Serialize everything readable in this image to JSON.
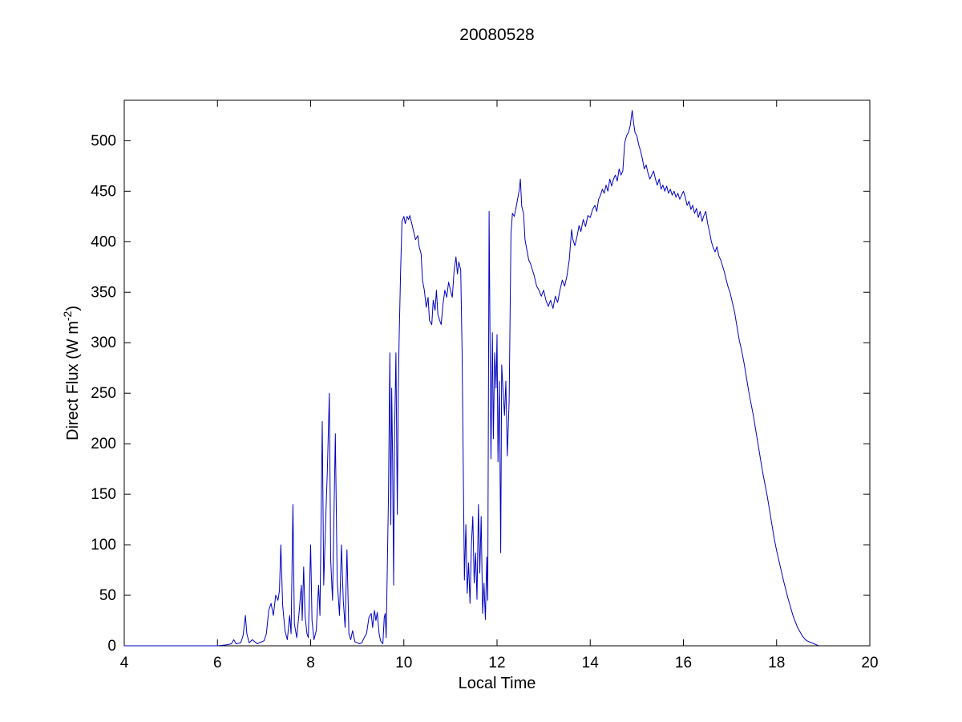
{
  "chart_data": {
    "type": "line",
    "title": "20080528",
    "xlabel": "Local Time",
    "ylabel": "Direct Flux (W m^-2)",
    "ylabel_parts": {
      "main": "Direct Flux (W m",
      "sup": "-2",
      "end": ")"
    },
    "xlim": [
      4,
      20
    ],
    "ylim": [
      0,
      540
    ],
    "xticks": [
      4,
      6,
      8,
      10,
      12,
      14,
      16,
      18,
      20
    ],
    "yticks": [
      0,
      50,
      100,
      150,
      200,
      250,
      300,
      350,
      400,
      450,
      500
    ],
    "grid": false,
    "legend": null,
    "line_color": "#0000bf",
    "axis_color": "#000000",
    "background": "#ffffff",
    "points": [
      [
        4.0,
        0
      ],
      [
        4.5,
        0
      ],
      [
        5.0,
        0
      ],
      [
        5.5,
        0
      ],
      [
        6.0,
        0
      ],
      [
        6.2,
        1
      ],
      [
        6.3,
        2
      ],
      [
        6.35,
        6
      ],
      [
        6.4,
        2
      ],
      [
        6.5,
        3
      ],
      [
        6.55,
        10
      ],
      [
        6.6,
        30
      ],
      [
        6.63,
        12
      ],
      [
        6.68,
        3
      ],
      [
        6.75,
        6
      ],
      [
        6.85,
        2
      ],
      [
        6.95,
        4
      ],
      [
        7.0,
        5
      ],
      [
        7.05,
        12
      ],
      [
        7.1,
        35
      ],
      [
        7.15,
        42
      ],
      [
        7.2,
        30
      ],
      [
        7.25,
        50
      ],
      [
        7.3,
        45
      ],
      [
        7.33,
        55
      ],
      [
        7.36,
        100
      ],
      [
        7.4,
        40
      ],
      [
        7.45,
        15
      ],
      [
        7.5,
        6
      ],
      [
        7.55,
        30
      ],
      [
        7.58,
        12
      ],
      [
        7.62,
        140
      ],
      [
        7.65,
        22
      ],
      [
        7.7,
        8
      ],
      [
        7.75,
        32
      ],
      [
        7.8,
        60
      ],
      [
        7.82,
        25
      ],
      [
        7.85,
        78
      ],
      [
        7.88,
        30
      ],
      [
        7.92,
        12
      ],
      [
        7.95,
        8
      ],
      [
        8.0,
        100
      ],
      [
        8.03,
        25
      ],
      [
        8.07,
        6
      ],
      [
        8.12,
        15
      ],
      [
        8.17,
        60
      ],
      [
        8.2,
        30
      ],
      [
        8.25,
        222
      ],
      [
        8.28,
        60
      ],
      [
        8.32,
        120
      ],
      [
        8.36,
        175
      ],
      [
        8.4,
        250
      ],
      [
        8.43,
        85
      ],
      [
        8.47,
        45
      ],
      [
        8.5,
        130
      ],
      [
        8.53,
        210
      ],
      [
        8.57,
        65
      ],
      [
        8.62,
        30
      ],
      [
        8.66,
        100
      ],
      [
        8.7,
        45
      ],
      [
        8.74,
        18
      ],
      [
        8.78,
        95
      ],
      [
        8.82,
        12
      ],
      [
        8.86,
        6
      ],
      [
        8.9,
        15
      ],
      [
        8.95,
        4
      ],
      [
        9.0,
        3
      ],
      [
        9.05,
        2
      ],
      [
        9.1,
        3
      ],
      [
        9.15,
        8
      ],
      [
        9.2,
        12
      ],
      [
        9.25,
        28
      ],
      [
        9.3,
        32
      ],
      [
        9.33,
        18
      ],
      [
        9.37,
        35
      ],
      [
        9.4,
        25
      ],
      [
        9.43,
        33
      ],
      [
        9.47,
        12
      ],
      [
        9.5,
        5
      ],
      [
        9.55,
        2
      ],
      [
        9.58,
        28
      ],
      [
        9.6,
        32
      ],
      [
        9.62,
        8
      ],
      [
        9.65,
        90
      ],
      [
        9.67,
        150
      ],
      [
        9.7,
        290
      ],
      [
        9.72,
        120
      ],
      [
        9.74,
        255
      ],
      [
        9.76,
        180
      ],
      [
        9.78,
        60
      ],
      [
        9.8,
        205
      ],
      [
        9.83,
        290
      ],
      [
        9.86,
        130
      ],
      [
        9.88,
        250
      ],
      [
        9.9,
        305
      ],
      [
        9.93,
        370
      ],
      [
        9.96,
        420
      ],
      [
        10.0,
        425
      ],
      [
        10.03,
        418
      ],
      [
        10.07,
        425
      ],
      [
        10.1,
        422
      ],
      [
        10.13,
        426
      ],
      [
        10.17,
        418
      ],
      [
        10.2,
        412
      ],
      [
        10.25,
        402
      ],
      [
        10.3,
        406
      ],
      [
        10.33,
        395
      ],
      [
        10.37,
        388
      ],
      [
        10.4,
        362
      ],
      [
        10.44,
        352
      ],
      [
        10.48,
        335
      ],
      [
        10.52,
        345
      ],
      [
        10.55,
        322
      ],
      [
        10.6,
        318
      ],
      [
        10.63,
        342
      ],
      [
        10.67,
        332
      ],
      [
        10.7,
        352
      ],
      [
        10.73,
        328
      ],
      [
        10.77,
        322
      ],
      [
        10.8,
        318
      ],
      [
        10.84,
        338
      ],
      [
        10.88,
        352
      ],
      [
        10.92,
        345
      ],
      [
        10.96,
        360
      ],
      [
        11.0,
        352
      ],
      [
        11.04,
        345
      ],
      [
        11.08,
        372
      ],
      [
        11.12,
        385
      ],
      [
        11.15,
        368
      ],
      [
        11.18,
        380
      ],
      [
        11.22,
        372
      ],
      [
        11.25,
        292
      ],
      [
        11.28,
        160
      ],
      [
        11.3,
        65
      ],
      [
        11.33,
        120
      ],
      [
        11.36,
        52
      ],
      [
        11.39,
        82
      ],
      [
        11.42,
        42
      ],
      [
        11.45,
        100
      ],
      [
        11.48,
        128
      ],
      [
        11.51,
        62
      ],
      [
        11.54,
        92
      ],
      [
        11.57,
        46
      ],
      [
        11.6,
        140
      ],
      [
        11.63,
        72
      ],
      [
        11.66,
        128
      ],
      [
        11.69,
        32
      ],
      [
        11.72,
        62
      ],
      [
        11.75,
        26
      ],
      [
        11.78,
        88
      ],
      [
        11.8,
        45
      ],
      [
        11.83,
        430
      ],
      [
        11.85,
        300
      ],
      [
        11.87,
        185
      ],
      [
        11.9,
        310
      ],
      [
        11.92,
        205
      ],
      [
        11.95,
        290
      ],
      [
        11.98,
        255
      ],
      [
        12.0,
        308
      ],
      [
        12.02,
        182
      ],
      [
        12.05,
        262
      ],
      [
        12.08,
        92
      ],
      [
        12.1,
        278
      ],
      [
        12.13,
        252
      ],
      [
        12.16,
        228
      ],
      [
        12.19,
        262
      ],
      [
        12.22,
        188
      ],
      [
        12.26,
        242
      ],
      [
        12.3,
        408
      ],
      [
        12.33,
        428
      ],
      [
        12.37,
        425
      ],
      [
        12.4,
        432
      ],
      [
        12.44,
        442
      ],
      [
        12.48,
        452
      ],
      [
        12.5,
        462
      ],
      [
        12.53,
        435
      ],
      [
        12.57,
        428
      ],
      [
        12.6,
        402
      ],
      [
        12.64,
        392
      ],
      [
        12.68,
        382
      ],
      [
        12.72,
        378
      ],
      [
        12.76,
        372
      ],
      [
        12.8,
        366
      ],
      [
        12.85,
        356
      ],
      [
        12.9,
        352
      ],
      [
        12.95,
        346
      ],
      [
        13.0,
        352
      ],
      [
        13.05,
        342
      ],
      [
        13.1,
        336
      ],
      [
        13.15,
        342
      ],
      [
        13.2,
        334
      ],
      [
        13.25,
        346
      ],
      [
        13.3,
        340
      ],
      [
        13.35,
        352
      ],
      [
        13.4,
        362
      ],
      [
        13.45,
        356
      ],
      [
        13.5,
        366
      ],
      [
        13.55,
        382
      ],
      [
        13.6,
        412
      ],
      [
        13.63,
        402
      ],
      [
        13.67,
        396
      ],
      [
        13.72,
        406
      ],
      [
        13.76,
        416
      ],
      [
        13.8,
        410
      ],
      [
        13.85,
        422
      ],
      [
        13.9,
        415
      ],
      [
        13.95,
        426
      ],
      [
        14.0,
        424
      ],
      [
        14.05,
        432
      ],
      [
        14.1,
        436
      ],
      [
        14.14,
        430
      ],
      [
        14.18,
        442
      ],
      [
        14.22,
        446
      ],
      [
        14.26,
        452
      ],
      [
        14.3,
        448
      ],
      [
        14.34,
        456
      ],
      [
        14.38,
        450
      ],
      [
        14.42,
        462
      ],
      [
        14.46,
        455
      ],
      [
        14.5,
        462
      ],
      [
        14.54,
        466
      ],
      [
        14.58,
        460
      ],
      [
        14.62,
        472
      ],
      [
        14.66,
        466
      ],
      [
        14.7,
        470
      ],
      [
        14.74,
        498
      ],
      [
        14.78,
        505
      ],
      [
        14.82,
        508
      ],
      [
        14.86,
        515
      ],
      [
        14.9,
        530
      ],
      [
        14.93,
        518
      ],
      [
        14.96,
        508
      ],
      [
        15.0,
        505
      ],
      [
        15.04,
        496
      ],
      [
        15.08,
        490
      ],
      [
        15.12,
        482
      ],
      [
        15.16,
        472
      ],
      [
        15.2,
        476
      ],
      [
        15.24,
        468
      ],
      [
        15.28,
        462
      ],
      [
        15.32,
        466
      ],
      [
        15.36,
        470
      ],
      [
        15.4,
        462
      ],
      [
        15.44,
        456
      ],
      [
        15.48,
        462
      ],
      [
        15.52,
        452
      ],
      [
        15.56,
        456
      ],
      [
        15.6,
        450
      ],
      [
        15.64,
        455
      ],
      [
        15.68,
        448
      ],
      [
        15.72,
        452
      ],
      [
        15.76,
        446
      ],
      [
        15.8,
        450
      ],
      [
        15.84,
        444
      ],
      [
        15.88,
        448
      ],
      [
        15.92,
        442
      ],
      [
        15.96,
        446
      ],
      [
        16.0,
        450
      ],
      [
        16.04,
        444
      ],
      [
        16.08,
        436
      ],
      [
        16.12,
        440
      ],
      [
        16.16,
        432
      ],
      [
        16.2,
        436
      ],
      [
        16.24,
        428
      ],
      [
        16.28,
        433
      ],
      [
        16.32,
        424
      ],
      [
        16.36,
        430
      ],
      [
        16.4,
        420
      ],
      [
        16.44,
        426
      ],
      [
        16.48,
        430
      ],
      [
        16.52,
        418
      ],
      [
        16.56,
        410
      ],
      [
        16.6,
        400
      ],
      [
        16.64,
        394
      ],
      [
        16.68,
        390
      ],
      [
        16.72,
        395
      ],
      [
        16.76,
        386
      ],
      [
        16.8,
        382
      ],
      [
        16.84,
        376
      ],
      [
        16.88,
        370
      ],
      [
        16.92,
        362
      ],
      [
        16.96,
        355
      ],
      [
        17.0,
        350
      ],
      [
        17.05,
        340
      ],
      [
        17.1,
        330
      ],
      [
        17.15,
        316
      ],
      [
        17.2,
        302
      ],
      [
        17.25,
        292
      ],
      [
        17.3,
        280
      ],
      [
        17.35,
        266
      ],
      [
        17.4,
        252
      ],
      [
        17.45,
        240
      ],
      [
        17.5,
        228
      ],
      [
        17.55,
        214
      ],
      [
        17.6,
        200
      ],
      [
        17.65,
        186
      ],
      [
        17.7,
        172
      ],
      [
        17.75,
        160
      ],
      [
        17.8,
        148
      ],
      [
        17.85,
        134
      ],
      [
        17.9,
        120
      ],
      [
        17.95,
        106
      ],
      [
        18.0,
        94
      ],
      [
        18.05,
        84
      ],
      [
        18.1,
        74
      ],
      [
        18.15,
        64
      ],
      [
        18.2,
        55
      ],
      [
        18.25,
        46
      ],
      [
        18.3,
        38
      ],
      [
        18.35,
        30
      ],
      [
        18.4,
        24
      ],
      [
        18.45,
        18
      ],
      [
        18.5,
        14
      ],
      [
        18.55,
        10
      ],
      [
        18.6,
        7
      ],
      [
        18.65,
        5
      ],
      [
        18.7,
        4
      ],
      [
        18.75,
        3
      ],
      [
        18.8,
        2
      ],
      [
        18.85,
        1
      ],
      [
        18.9,
        0
      ]
    ]
  }
}
